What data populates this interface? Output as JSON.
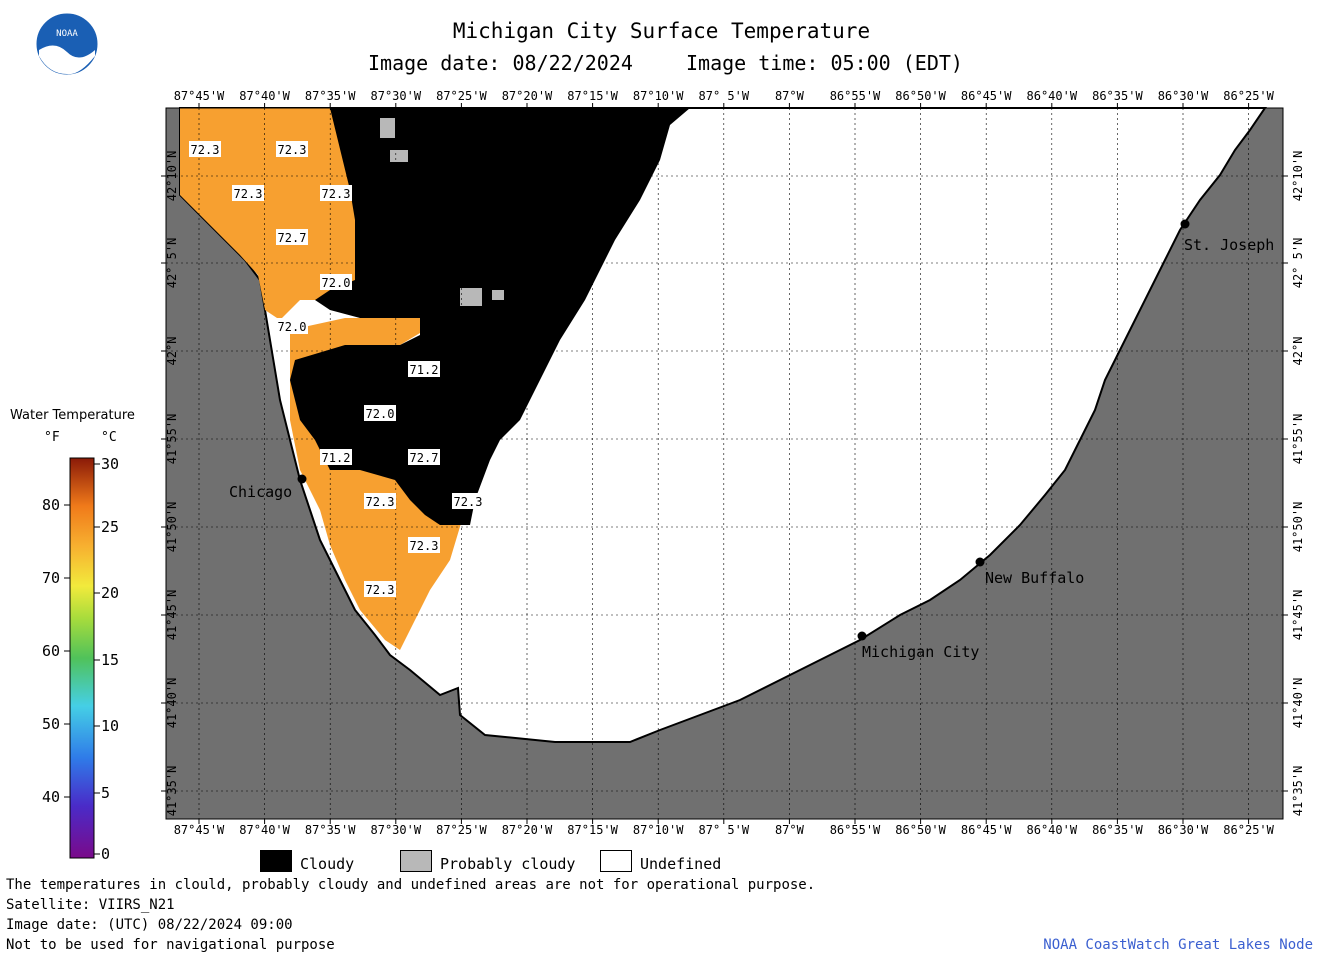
{
  "header": {
    "title": "Michigan City Surface Temperature",
    "image_date": "Image date: 08/22/2024",
    "image_time": "Image time: 05:00 (EDT)"
  },
  "logo": {
    "text": "NOAA",
    "icon": "noaa-logo-icon"
  },
  "axes": {
    "longitude_labels": [
      "87°45'W",
      "87°40'W",
      "87°35'W",
      "87°30'W",
      "87°25'W",
      "87°20'W",
      "87°15'W",
      "87°10'W",
      "87° 5'W",
      "87°W",
      "86°55'W",
      "86°50'W",
      "86°45'W",
      "86°40'W",
      "86°35'W",
      "86°30'W",
      "86°25'W"
    ],
    "latitude_labels": [
      "42°10'N",
      "42° 5'N",
      "42°N",
      "41°55'N",
      "41°50'N",
      "41°45'N",
      "41°40'N",
      "41°35'N"
    ]
  },
  "cities": [
    {
      "name": "Chicago"
    },
    {
      "name": "St. Joseph"
    },
    {
      "name": "New Buffalo"
    },
    {
      "name": "Michigan City"
    }
  ],
  "isotherm_labels": [
    "72.3",
    "72.3",
    "72.3",
    "72.3",
    "72.7",
    "72.0",
    "72.0",
    "71.2",
    "72.0",
    "72.7",
    "71.2",
    "72.3",
    "72.3",
    "72.3",
    "72.3"
  ],
  "colorbar": {
    "title": "Water Temperature",
    "unit_f": "°F",
    "unit_c": "°C",
    "f_ticks": [
      "80",
      "70",
      "60",
      "50",
      "40"
    ],
    "c_ticks": [
      "30",
      "25",
      "20",
      "15",
      "10",
      "5",
      "0"
    ]
  },
  "legend": {
    "cloudy": "Cloudy",
    "probably_cloudy": "Probably cloudy",
    "undefined": "Undefined"
  },
  "footer": {
    "line1": "The temperatures in clould, probably cloudy and undefined areas are not for operational purpose.",
    "line2": "Satellite: VIIRS_N21",
    "line3": "Image date: (UTC) 08/22/2024  09:00",
    "line4": "Not to be used for navigational purpose",
    "credit": "NOAA CoastWatch Great Lakes Node"
  },
  "colors": {
    "land": "#707070",
    "water_warm": "#f7a030",
    "cloud": "#000000",
    "probably_cloudy": "#b8b8b8",
    "undefined": "#ffffff",
    "credit": "#3a5fd0"
  }
}
